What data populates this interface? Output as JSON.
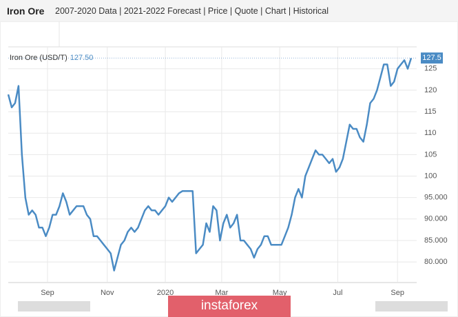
{
  "chart_data": {
    "type": "line",
    "title": "Iron Ore",
    "nav": "2007-2020 Data | 2021-2022 Forecast | Price | Quote | Chart | Historical",
    "current_label": "127.50",
    "watermark": "instaforex",
    "series": [
      {
        "name": "Iron Ore (USD/T)",
        "color": "#4a8bc4",
        "values": [
          119,
          116,
          117,
          121,
          105,
          95,
          91,
          92,
          91,
          88,
          88,
          86,
          88,
          91,
          91,
          93,
          96,
          94,
          91,
          92,
          93,
          93,
          93,
          91,
          90,
          86,
          86,
          85,
          84,
          83,
          82,
          78,
          81,
          84,
          85,
          87,
          88,
          87,
          88,
          90,
          92,
          93,
          92,
          92,
          91,
          92,
          93,
          95,
          94,
          95,
          96,
          96.5,
          96.5,
          96.5,
          96.5,
          82,
          83,
          84,
          89,
          87,
          93,
          92,
          85,
          89,
          91,
          88,
          89,
          91,
          85,
          85,
          84,
          83,
          81,
          83,
          84,
          86,
          86,
          84,
          84,
          84,
          84,
          86,
          88,
          91,
          95,
          97,
          95,
          100,
          102,
          104,
          106,
          105,
          105,
          104,
          103,
          104,
          101,
          102,
          104,
          108,
          112,
          111,
          111,
          109,
          108,
          112,
          117,
          118,
          120,
          123,
          126,
          126,
          121,
          122,
          125,
          126,
          127,
          125,
          127.5
        ]
      }
    ],
    "xlim": [
      0,
      118
    ],
    "xticks": [
      {
        "value": 11.5,
        "label": "Sep"
      },
      {
        "value": 29,
        "label": "Nov"
      },
      {
        "value": 46,
        "label": "2020"
      },
      {
        "value": 62.5,
        "label": "Mar"
      },
      {
        "value": 79.5,
        "label": "May"
      },
      {
        "value": 96.5,
        "label": "Jul"
      },
      {
        "value": 114,
        "label": "Sep"
      }
    ],
    "ylim": [
      75.2,
      130.1
    ],
    "yticks": [
      {
        "value": 80,
        "label": "80.000"
      },
      {
        "value": 85,
        "label": "85.000"
      },
      {
        "value": 90,
        "label": "90.000"
      },
      {
        "value": 95,
        "label": "95.000"
      },
      100,
      105,
      110,
      115,
      120,
      125
    ],
    "grid": true
  }
}
